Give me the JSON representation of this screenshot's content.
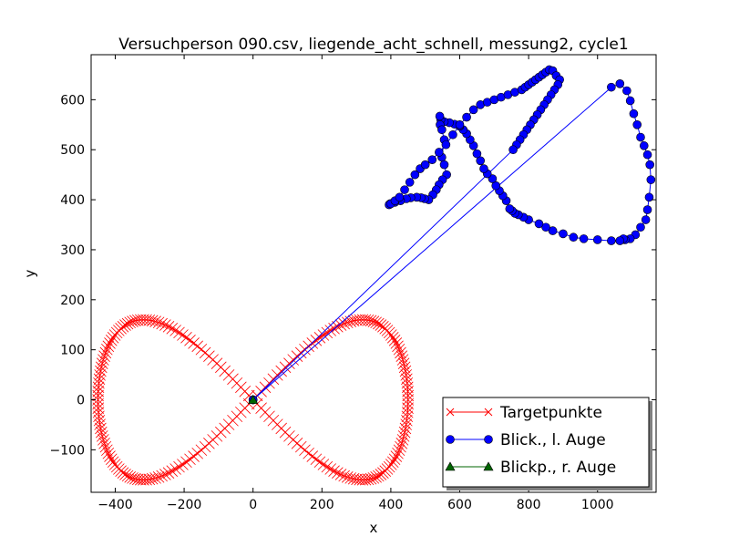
{
  "chart_data": {
    "type": "line",
    "title": "Versuchperson 090.csv, liegende_acht_schnell, messung2, cycle1",
    "xlabel": "x",
    "ylabel": "y",
    "xlim": [
      -470,
      1170
    ],
    "ylim": [
      -185,
      690
    ],
    "x_ticks": [
      -400,
      -200,
      0,
      200,
      400,
      600,
      800,
      1000
    ],
    "y_ticks": [
      -100,
      0,
      100,
      200,
      300,
      400,
      500,
      600
    ],
    "x_tick_labels": [
      "−400",
      "−200",
      "0",
      "200",
      "400",
      "600",
      "800",
      "1000"
    ],
    "y_tick_labels": [
      "−100",
      "0",
      "100",
      "200",
      "300",
      "400",
      "500",
      "600"
    ],
    "grid": false,
    "legend_position": "lower-right",
    "target": {
      "name": "Targetpunkte",
      "color": "#ff0000",
      "marker": "x",
      "curve": "lemniscate",
      "center": [
        0,
        0
      ],
      "x_half_width": 450,
      "y_amplitude": 160,
      "point_count": 240
    },
    "series": [
      {
        "name": "Blick., l. Auge",
        "color": "#0000ff",
        "marker": "circle",
        "x": [
          0,
          1040,
          1065,
          1085,
          1095,
          1105,
          1115,
          1125,
          1135,
          1145,
          1152,
          1155,
          1150,
          1145,
          1140,
          1125,
          1110,
          1095,
          1080,
          1075,
          1065,
          1040,
          1000,
          960,
          930,
          900,
          870,
          850,
          830,
          800,
          785,
          770,
          760,
          752,
          745,
          735,
          725,
          715,
          705,
          695,
          680,
          670,
          660,
          650,
          640,
          630,
          620,
          610,
          600,
          585,
          570,
          555,
          545,
          542,
          543,
          548,
          555,
          548,
          555,
          562,
          550,
          540,
          532,
          522,
          510,
          498,
          488,
          475,
          458,
          445,
          428,
          412,
          398,
          395,
          400,
          412,
          425,
          440,
          455,
          470,
          485,
          500,
          520,
          540,
          560,
          580,
          600,
          620,
          640,
          660,
          680,
          700,
          720,
          740,
          760,
          780,
          790,
          800,
          810,
          820,
          830,
          840,
          850,
          860,
          870,
          880,
          890,
          885,
          875,
          865,
          855,
          845,
          835,
          825,
          815,
          805,
          795,
          785,
          775,
          765,
          755,
          0
        ],
        "y": [
          0,
          625,
          632,
          618,
          598,
          572,
          550,
          525,
          508,
          490,
          470,
          440,
          405,
          380,
          360,
          345,
          330,
          322,
          320,
          322,
          318,
          318,
          320,
          322,
          325,
          332,
          338,
          345,
          352,
          360,
          365,
          370,
          373,
          378,
          382,
          398,
          408,
          418,
          428,
          442,
          452,
          462,
          478,
          492,
          508,
          520,
          532,
          540,
          547,
          551,
          554,
          556,
          560,
          567,
          550,
          540,
          520,
          485,
          470,
          450,
          440,
          430,
          420,
          410,
          400,
          402,
          404,
          405,
          404,
          402,
          398,
          395,
          392,
          390,
          392,
          398,
          405,
          420,
          435,
          450,
          462,
          470,
          480,
          495,
          510,
          530,
          550,
          565,
          580,
          590,
          595,
          600,
          605,
          610,
          615,
          620,
          625,
          630,
          635,
          640,
          645,
          650,
          655,
          660,
          658,
          648,
          640,
          630,
          620,
          610,
          600,
          590,
          580,
          570,
          560,
          550,
          540,
          530,
          520,
          510,
          500,
          0
        ]
      },
      {
        "name": "Blickp., r. Auge",
        "color": "#006400",
        "marker": "triangle",
        "x": [
          0
        ],
        "y": [
          0
        ]
      }
    ]
  }
}
